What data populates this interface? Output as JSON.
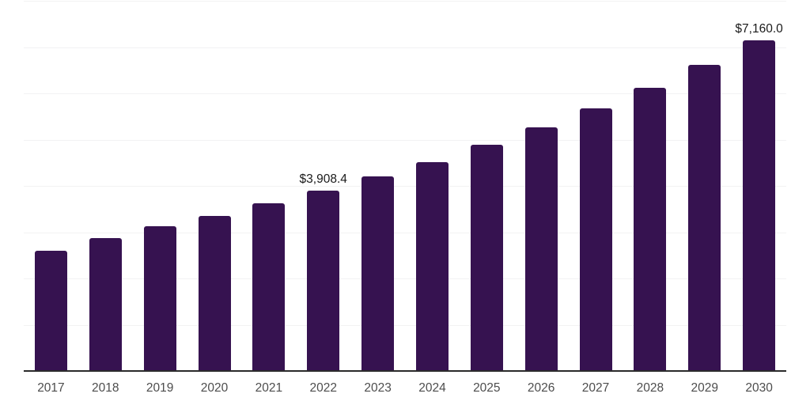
{
  "chart_data": {
    "type": "bar",
    "title": "",
    "xlabel": "",
    "ylabel": "",
    "categories": [
      "2017",
      "2018",
      "2019",
      "2020",
      "2021",
      "2022",
      "2023",
      "2024",
      "2025",
      "2026",
      "2027",
      "2028",
      "2029",
      "2030"
    ],
    "values": [
      2610,
      2885,
      3140,
      3360,
      3635,
      3908.4,
      4215,
      4525,
      4900,
      5275,
      5700,
      6145,
      6640,
      7160
    ],
    "data_labels": [
      "",
      "",
      "",
      "",
      "",
      "$3,908.4",
      "",
      "",
      "",
      "",
      "",
      "",
      "",
      "$7,160.0"
    ],
    "ylim": [
      0,
      8000
    ],
    "gridline_step": 1000,
    "grid": "on",
    "legend": "none",
    "y_axis_tick_labels": "none",
    "colors": {
      "bar": "#361250",
      "gridline": "#f2f2f3",
      "axis_line": "#2b2b2b",
      "tick_label": "#4d4d4d",
      "data_label": "#1a1a1a",
      "background": "#ffffff"
    }
  }
}
